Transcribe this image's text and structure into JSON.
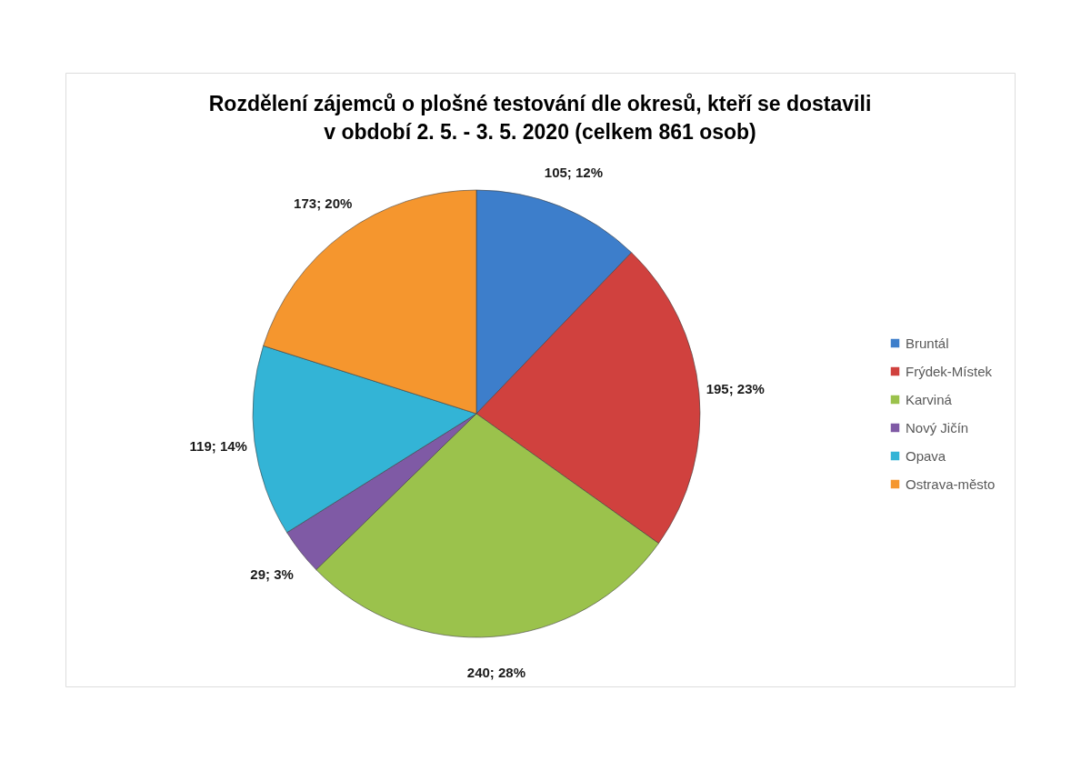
{
  "chart_data": {
    "type": "pie",
    "title": "Rozdělení zájemců o plošné testování dle okresů, kteří se dostavili v období 2. 5. - 3. 5. 2020 (celkem 861 osob)",
    "categories": [
      "Bruntál",
      "Frýdek-Místek",
      "Karviná",
      "Nový Jičín",
      "Opava",
      "Ostrava-město"
    ],
    "values": [
      105,
      195,
      240,
      29,
      119,
      173
    ],
    "colors": [
      "#3d7ecb",
      "#d0413e",
      "#9bc24c",
      "#7f5aa5",
      "#33b4d6",
      "#f5962e"
    ],
    "value_labels": [
      "105; 12%",
      "195; 23%",
      "240; 28%",
      "29; 3%",
      "119; 14%",
      "173; 20%"
    ],
    "legend": "right"
  }
}
